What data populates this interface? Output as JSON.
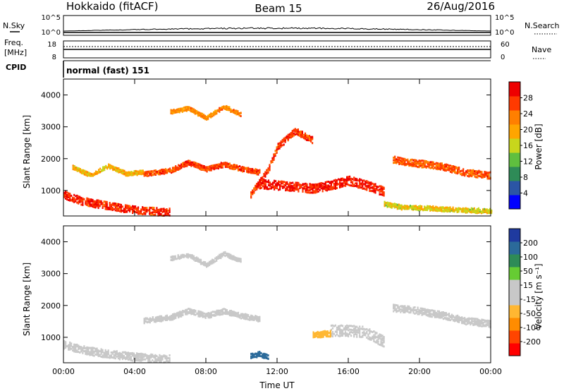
{
  "header": {
    "station": "Hokkaido (fitACF)",
    "beam": "Beam 15",
    "date": "26/Aug/2016"
  },
  "top_panels": {
    "nsky_label": "N.Sky",
    "nsky_ticks": [
      "10^5",
      "10^0"
    ],
    "nsearch_label": "N.Search",
    "nsearch_ticks": [
      "10^5",
      "10^0"
    ],
    "freq_label_line1": "Freq.",
    "freq_label_line2": "[MHz]",
    "freq_ticks": [
      "18",
      "8"
    ],
    "nave_label": "Nave",
    "nave_ticks": [
      "60",
      "0"
    ],
    "cpid_label": "CPID",
    "cpid_text": "normal (fast) 151"
  },
  "colors": {
    "power_scale": [
      "#0000ff",
      "#2b55a5",
      "#2e8b57",
      "#5fbf3f",
      "#c8d61c",
      "#ffa500",
      "#ff7f00",
      "#ff3a00",
      "#ee0000"
    ],
    "velocity_scale": [
      "#ff0000",
      "#ff4500",
      "#ff8c00",
      "#ffb732",
      "#c8c8c8",
      "#c8c8c8",
      "#66cc33",
      "#2e8b57",
      "#2b6a9a",
      "#1f3a9f"
    ],
    "ground_scatter": "#aaaaaa"
  },
  "chart_data": [
    {
      "type": "heatmap",
      "panel": "power",
      "xlabel": "Time UT",
      "ylabel": "Slant Range [km]",
      "x_ticks": [
        "00:00",
        "04:00",
        "08:00",
        "12:00",
        "16:00",
        "20:00",
        "00:00"
      ],
      "xlim": [
        0,
        24
      ],
      "ylim": [
        200,
        4500
      ],
      "y_ticks": [
        1000,
        2000,
        3000,
        4000
      ],
      "colorbar": {
        "label": "Power [dB]",
        "ticks": [
          "28",
          "24",
          "20",
          "16",
          "12",
          "8",
          "4"
        ],
        "range": [
          0,
          30
        ]
      },
      "bands": [
        {
          "t": [
            0,
            1,
            2,
            3,
            4,
            5,
            6
          ],
          "range": [
            900,
            700,
            600,
            500,
            420,
            380,
            350
          ],
          "width": 250,
          "value": 26
        },
        {
          "t": [
            0.5,
            1.5,
            2.5,
            3.5,
            4.5
          ],
          "range": [
            1750,
            1500,
            1800,
            1550,
            1600
          ],
          "width": 120,
          "value": 18
        },
        {
          "t": [
            4.5,
            6,
            7,
            8,
            9,
            10,
            11
          ],
          "range": [
            1550,
            1650,
            1900,
            1700,
            1850,
            1700,
            1600
          ],
          "width": 150,
          "value": 25
        },
        {
          "t": [
            6,
            7,
            8,
            9,
            10
          ],
          "range": [
            3500,
            3600,
            3300,
            3650,
            3400
          ],
          "width": 120,
          "value": 21
        },
        {
          "t": [
            10.5,
            11.5,
            12,
            13,
            14
          ],
          "range": [
            900,
            1700,
            2400,
            2900,
            2600
          ],
          "width": 200,
          "value": 25
        },
        {
          "t": [
            11,
            12,
            13,
            14,
            15,
            16,
            17,
            18
          ],
          "range": [
            1250,
            1200,
            1150,
            1100,
            1200,
            1350,
            1200,
            1000
          ],
          "width": 300,
          "value": 27
        },
        {
          "t": [
            18.5,
            19.5,
            20.5,
            21.5,
            22.5,
            24
          ],
          "range": [
            2000,
            1900,
            1850,
            1750,
            1600,
            1500
          ],
          "width": 220,
          "value": 24
        },
        {
          "t": [
            18,
            19,
            20,
            21,
            22,
            23,
            24
          ],
          "range": [
            600,
            500,
            480,
            450,
            420,
            400,
            380
          ],
          "width": 140,
          "value": 16
        }
      ]
    },
    {
      "type": "heatmap",
      "panel": "velocity",
      "xlabel": "Time UT",
      "ylabel": "Slant Range [km]",
      "x_ticks": [
        "00:00",
        "04:00",
        "08:00",
        "12:00",
        "16:00",
        "20:00",
        "00:00"
      ],
      "xlim": [
        0,
        24
      ],
      "ylim": [
        200,
        4500
      ],
      "y_ticks": [
        1000,
        2000,
        3000,
        4000
      ],
      "colorbar": {
        "label": "Velocity [m s⁻¹]",
        "ticks": [
          "200",
          "100",
          "50",
          "15",
          "-15",
          "-50",
          "-100",
          "-200"
        ],
        "range": [
          -250,
          250
        ]
      },
      "bands": [
        {
          "t": [
            0,
            1,
            2,
            3,
            4,
            5,
            6
          ],
          "range": [
            800,
            650,
            550,
            480,
            420,
            380,
            350
          ],
          "width": 260,
          "value": 0
        },
        {
          "t": [
            4.5,
            6,
            7,
            8,
            9,
            10,
            11
          ],
          "range": [
            1550,
            1650,
            1850,
            1700,
            1850,
            1700,
            1600
          ],
          "width": 160,
          "value": 0
        },
        {
          "t": [
            6,
            7,
            8,
            9,
            10
          ],
          "range": [
            3500,
            3600,
            3300,
            3650,
            3400
          ],
          "width": 120,
          "value": -30
        },
        {
          "t": [
            10.5,
            11,
            11.5
          ],
          "range": [
            450,
            500,
            400
          ],
          "width": 150,
          "value": 180
        },
        {
          "t": [
            15,
            16,
            17,
            18
          ],
          "range": [
            1250,
            1250,
            1200,
            900
          ],
          "width": 380,
          "value": 40
        },
        {
          "t": [
            14,
            15
          ],
          "range": [
            1100,
            1150
          ],
          "width": 200,
          "value": -60
        },
        {
          "t": [
            18.5,
            19.5,
            20.5,
            21.5,
            22.5,
            24
          ],
          "range": [
            1950,
            1900,
            1800,
            1700,
            1550,
            1450
          ],
          "width": 220,
          "value": 0
        }
      ]
    }
  ]
}
